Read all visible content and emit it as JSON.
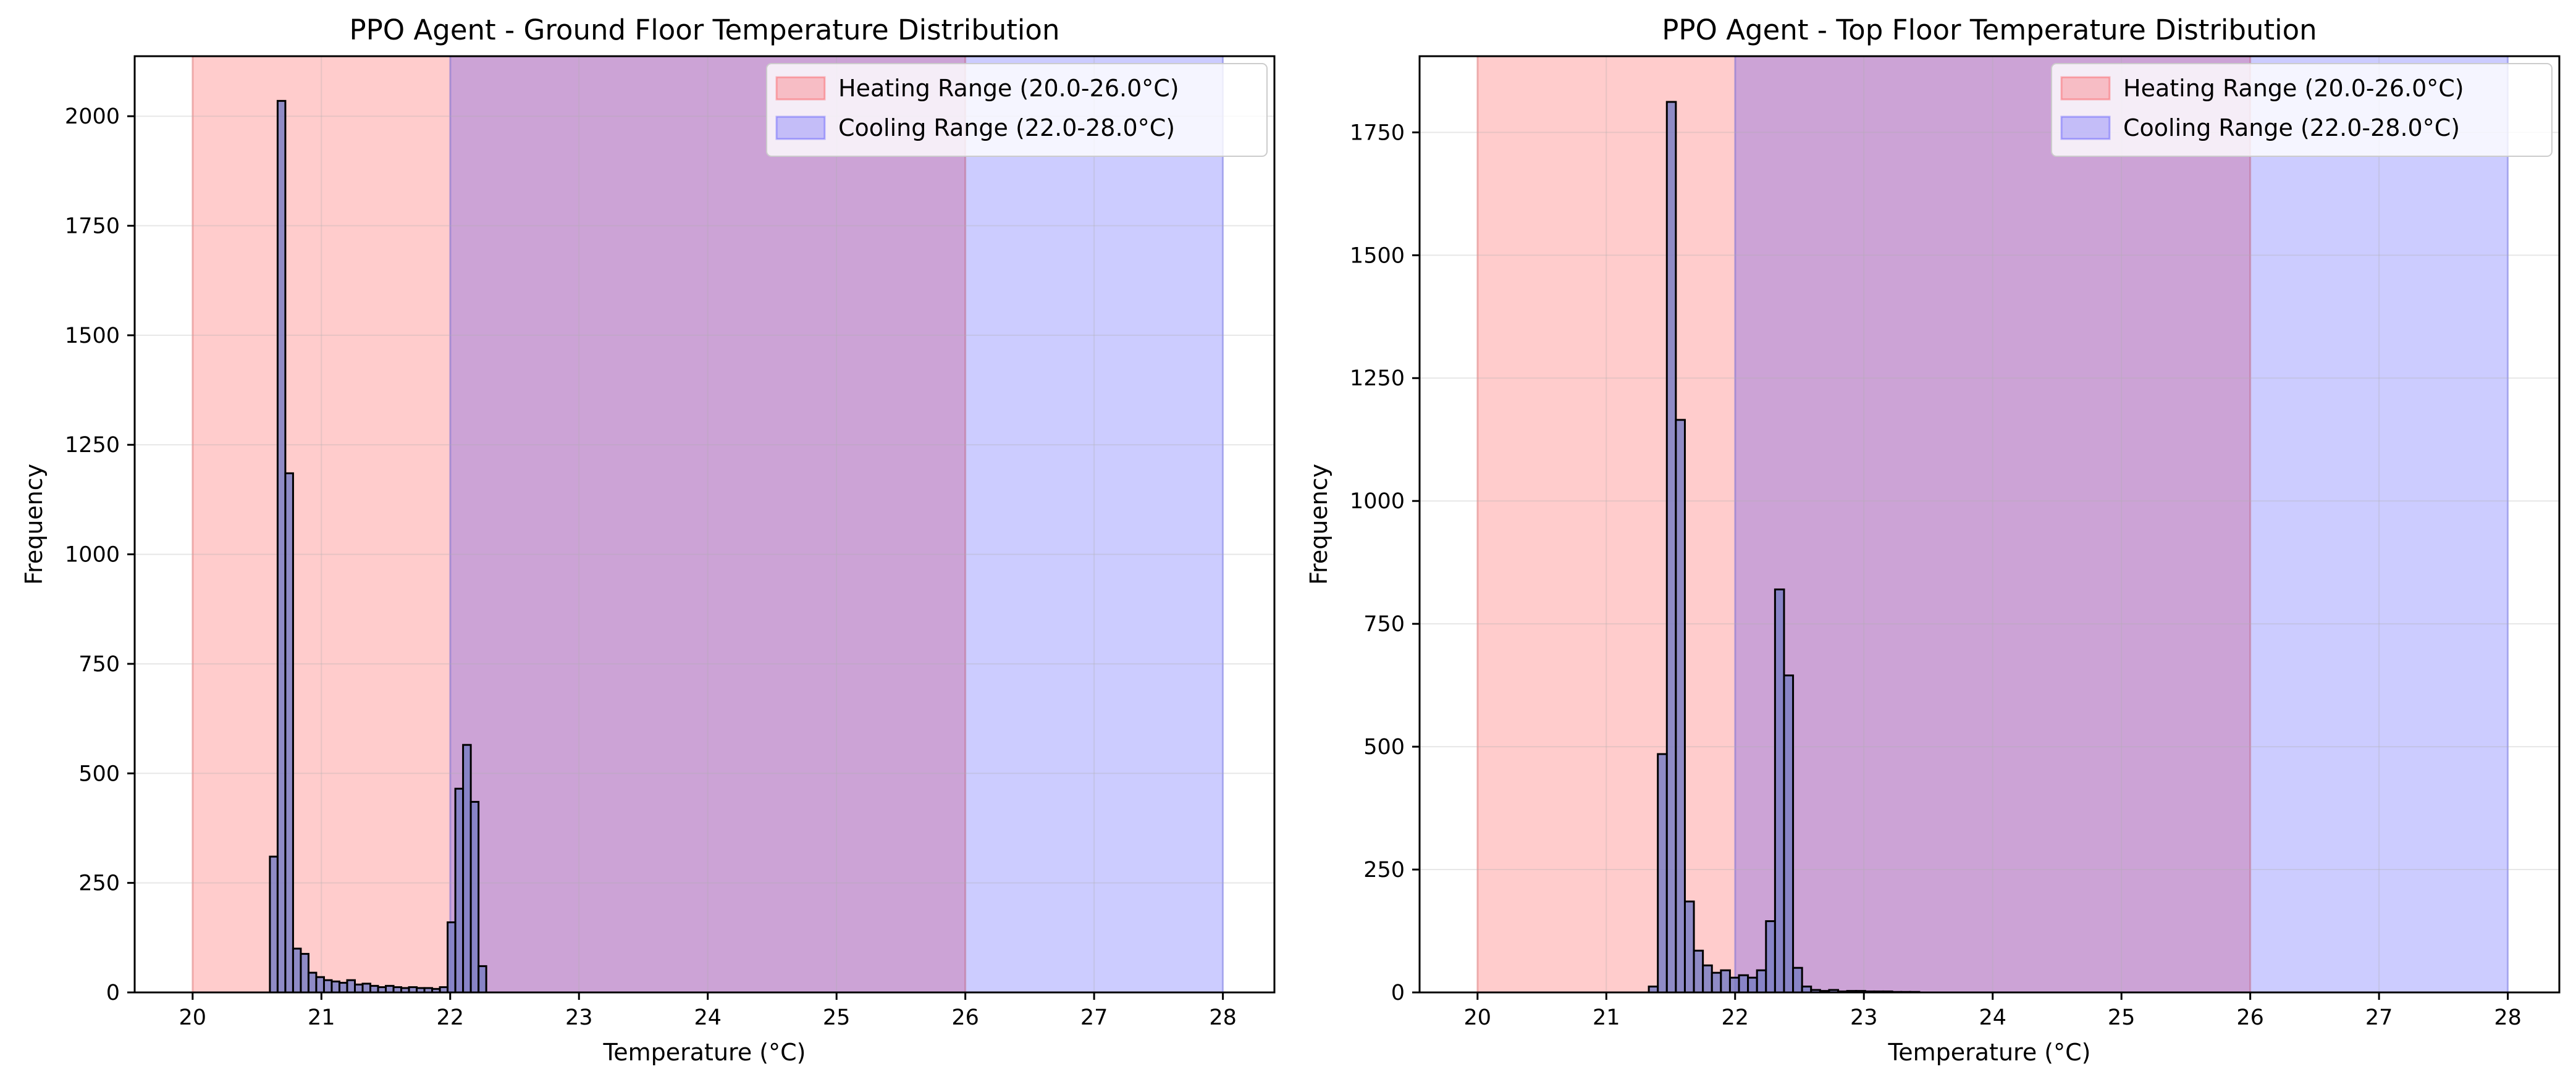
{
  "chart_data": [
    {
      "type": "bar",
      "title": "PPO Agent - Ground Floor Temperature Distribution",
      "xlabel": "Temperature (°C)",
      "ylabel": "Frequency",
      "xlim": [
        19.55,
        28.4
      ],
      "ylim": [
        0,
        2137
      ],
      "xticks": [
        20,
        21,
        22,
        23,
        24,
        25,
        26,
        27,
        28
      ],
      "yticks": [
        0,
        250,
        500,
        750,
        1000,
        1250,
        1500,
        1750,
        2000
      ],
      "grid": true,
      "legend_position": "top-right",
      "bar_color": "#7b7fc4",
      "bar_edge_color": "#000000",
      "bin_width": 0.06,
      "bins": [
        {
          "x": 20.6,
          "value": 310
        },
        {
          "x": 20.66,
          "value": 2035
        },
        {
          "x": 20.72,
          "value": 1185
        },
        {
          "x": 20.78,
          "value": 100
        },
        {
          "x": 20.84,
          "value": 88
        },
        {
          "x": 20.9,
          "value": 45
        },
        {
          "x": 20.96,
          "value": 35
        },
        {
          "x": 21.02,
          "value": 28
        },
        {
          "x": 21.08,
          "value": 25
        },
        {
          "x": 21.14,
          "value": 22
        },
        {
          "x": 21.2,
          "value": 28
        },
        {
          "x": 21.26,
          "value": 18
        },
        {
          "x": 21.32,
          "value": 20
        },
        {
          "x": 21.38,
          "value": 15
        },
        {
          "x": 21.44,
          "value": 12
        },
        {
          "x": 21.5,
          "value": 15
        },
        {
          "x": 21.56,
          "value": 12
        },
        {
          "x": 21.62,
          "value": 10
        },
        {
          "x": 21.68,
          "value": 12
        },
        {
          "x": 21.74,
          "value": 10
        },
        {
          "x": 21.8,
          "value": 10
        },
        {
          "x": 21.86,
          "value": 8
        },
        {
          "x": 21.92,
          "value": 12
        },
        {
          "x": 21.98,
          "value": 160
        },
        {
          "x": 22.04,
          "value": 465
        },
        {
          "x": 22.1,
          "value": 565
        },
        {
          "x": 22.16,
          "value": 435
        },
        {
          "x": 22.22,
          "value": 60
        }
      ],
      "legend": [
        {
          "label": "Heating Range (20.0-26.0°C)",
          "range": [
            20.0,
            26.0
          ],
          "color": "#ff0000",
          "opacity": 0.2
        },
        {
          "label": "Cooling Range (22.0-28.0°C)",
          "range": [
            22.0,
            28.0
          ],
          "color": "#0000ff",
          "opacity": 0.2
        }
      ]
    },
    {
      "type": "bar",
      "title": "PPO Agent - Top Floor Temperature Distribution",
      "xlabel": "Temperature (°C)",
      "ylabel": "Frequency",
      "xlim": [
        19.55,
        28.4
      ],
      "ylim": [
        0,
        1905
      ],
      "xticks": [
        20,
        21,
        22,
        23,
        24,
        25,
        26,
        27,
        28
      ],
      "yticks": [
        0,
        250,
        500,
        750,
        1000,
        1250,
        1500,
        1750
      ],
      "grid": true,
      "legend_position": "top-right",
      "bar_color": "#7b7fc4",
      "bar_edge_color": "#000000",
      "bin_width": 0.07,
      "bins": [
        {
          "x": 21.33,
          "value": 12
        },
        {
          "x": 21.4,
          "value": 485
        },
        {
          "x": 21.47,
          "value": 1812
        },
        {
          "x": 21.54,
          "value": 1165
        },
        {
          "x": 21.61,
          "value": 185
        },
        {
          "x": 21.68,
          "value": 85
        },
        {
          "x": 21.75,
          "value": 55
        },
        {
          "x": 21.82,
          "value": 40
        },
        {
          "x": 21.89,
          "value": 45
        },
        {
          "x": 21.96,
          "value": 30
        },
        {
          "x": 22.03,
          "value": 35
        },
        {
          "x": 22.1,
          "value": 30
        },
        {
          "x": 22.17,
          "value": 45
        },
        {
          "x": 22.24,
          "value": 145
        },
        {
          "x": 22.31,
          "value": 820
        },
        {
          "x": 22.38,
          "value": 645
        },
        {
          "x": 22.45,
          "value": 50
        },
        {
          "x": 22.52,
          "value": 12
        },
        {
          "x": 22.59,
          "value": 5
        },
        {
          "x": 22.66,
          "value": 3
        },
        {
          "x": 22.73,
          "value": 5
        },
        {
          "x": 22.8,
          "value": 2
        },
        {
          "x": 22.87,
          "value": 3
        },
        {
          "x": 22.94,
          "value": 3
        },
        {
          "x": 23.01,
          "value": 2
        },
        {
          "x": 23.08,
          "value": 2
        },
        {
          "x": 23.15,
          "value": 2
        },
        {
          "x": 23.22,
          "value": 1
        },
        {
          "x": 23.29,
          "value": 1
        },
        {
          "x": 23.36,
          "value": 1
        }
      ],
      "legend": [
        {
          "label": "Heating Range (20.0-26.0°C)",
          "range": [
            20.0,
            26.0
          ],
          "color": "#ff0000",
          "opacity": 0.2
        },
        {
          "label": "Cooling Range (22.0-28.0°C)",
          "range": [
            22.0,
            28.0
          ],
          "color": "#0000ff",
          "opacity": 0.2
        }
      ]
    }
  ]
}
